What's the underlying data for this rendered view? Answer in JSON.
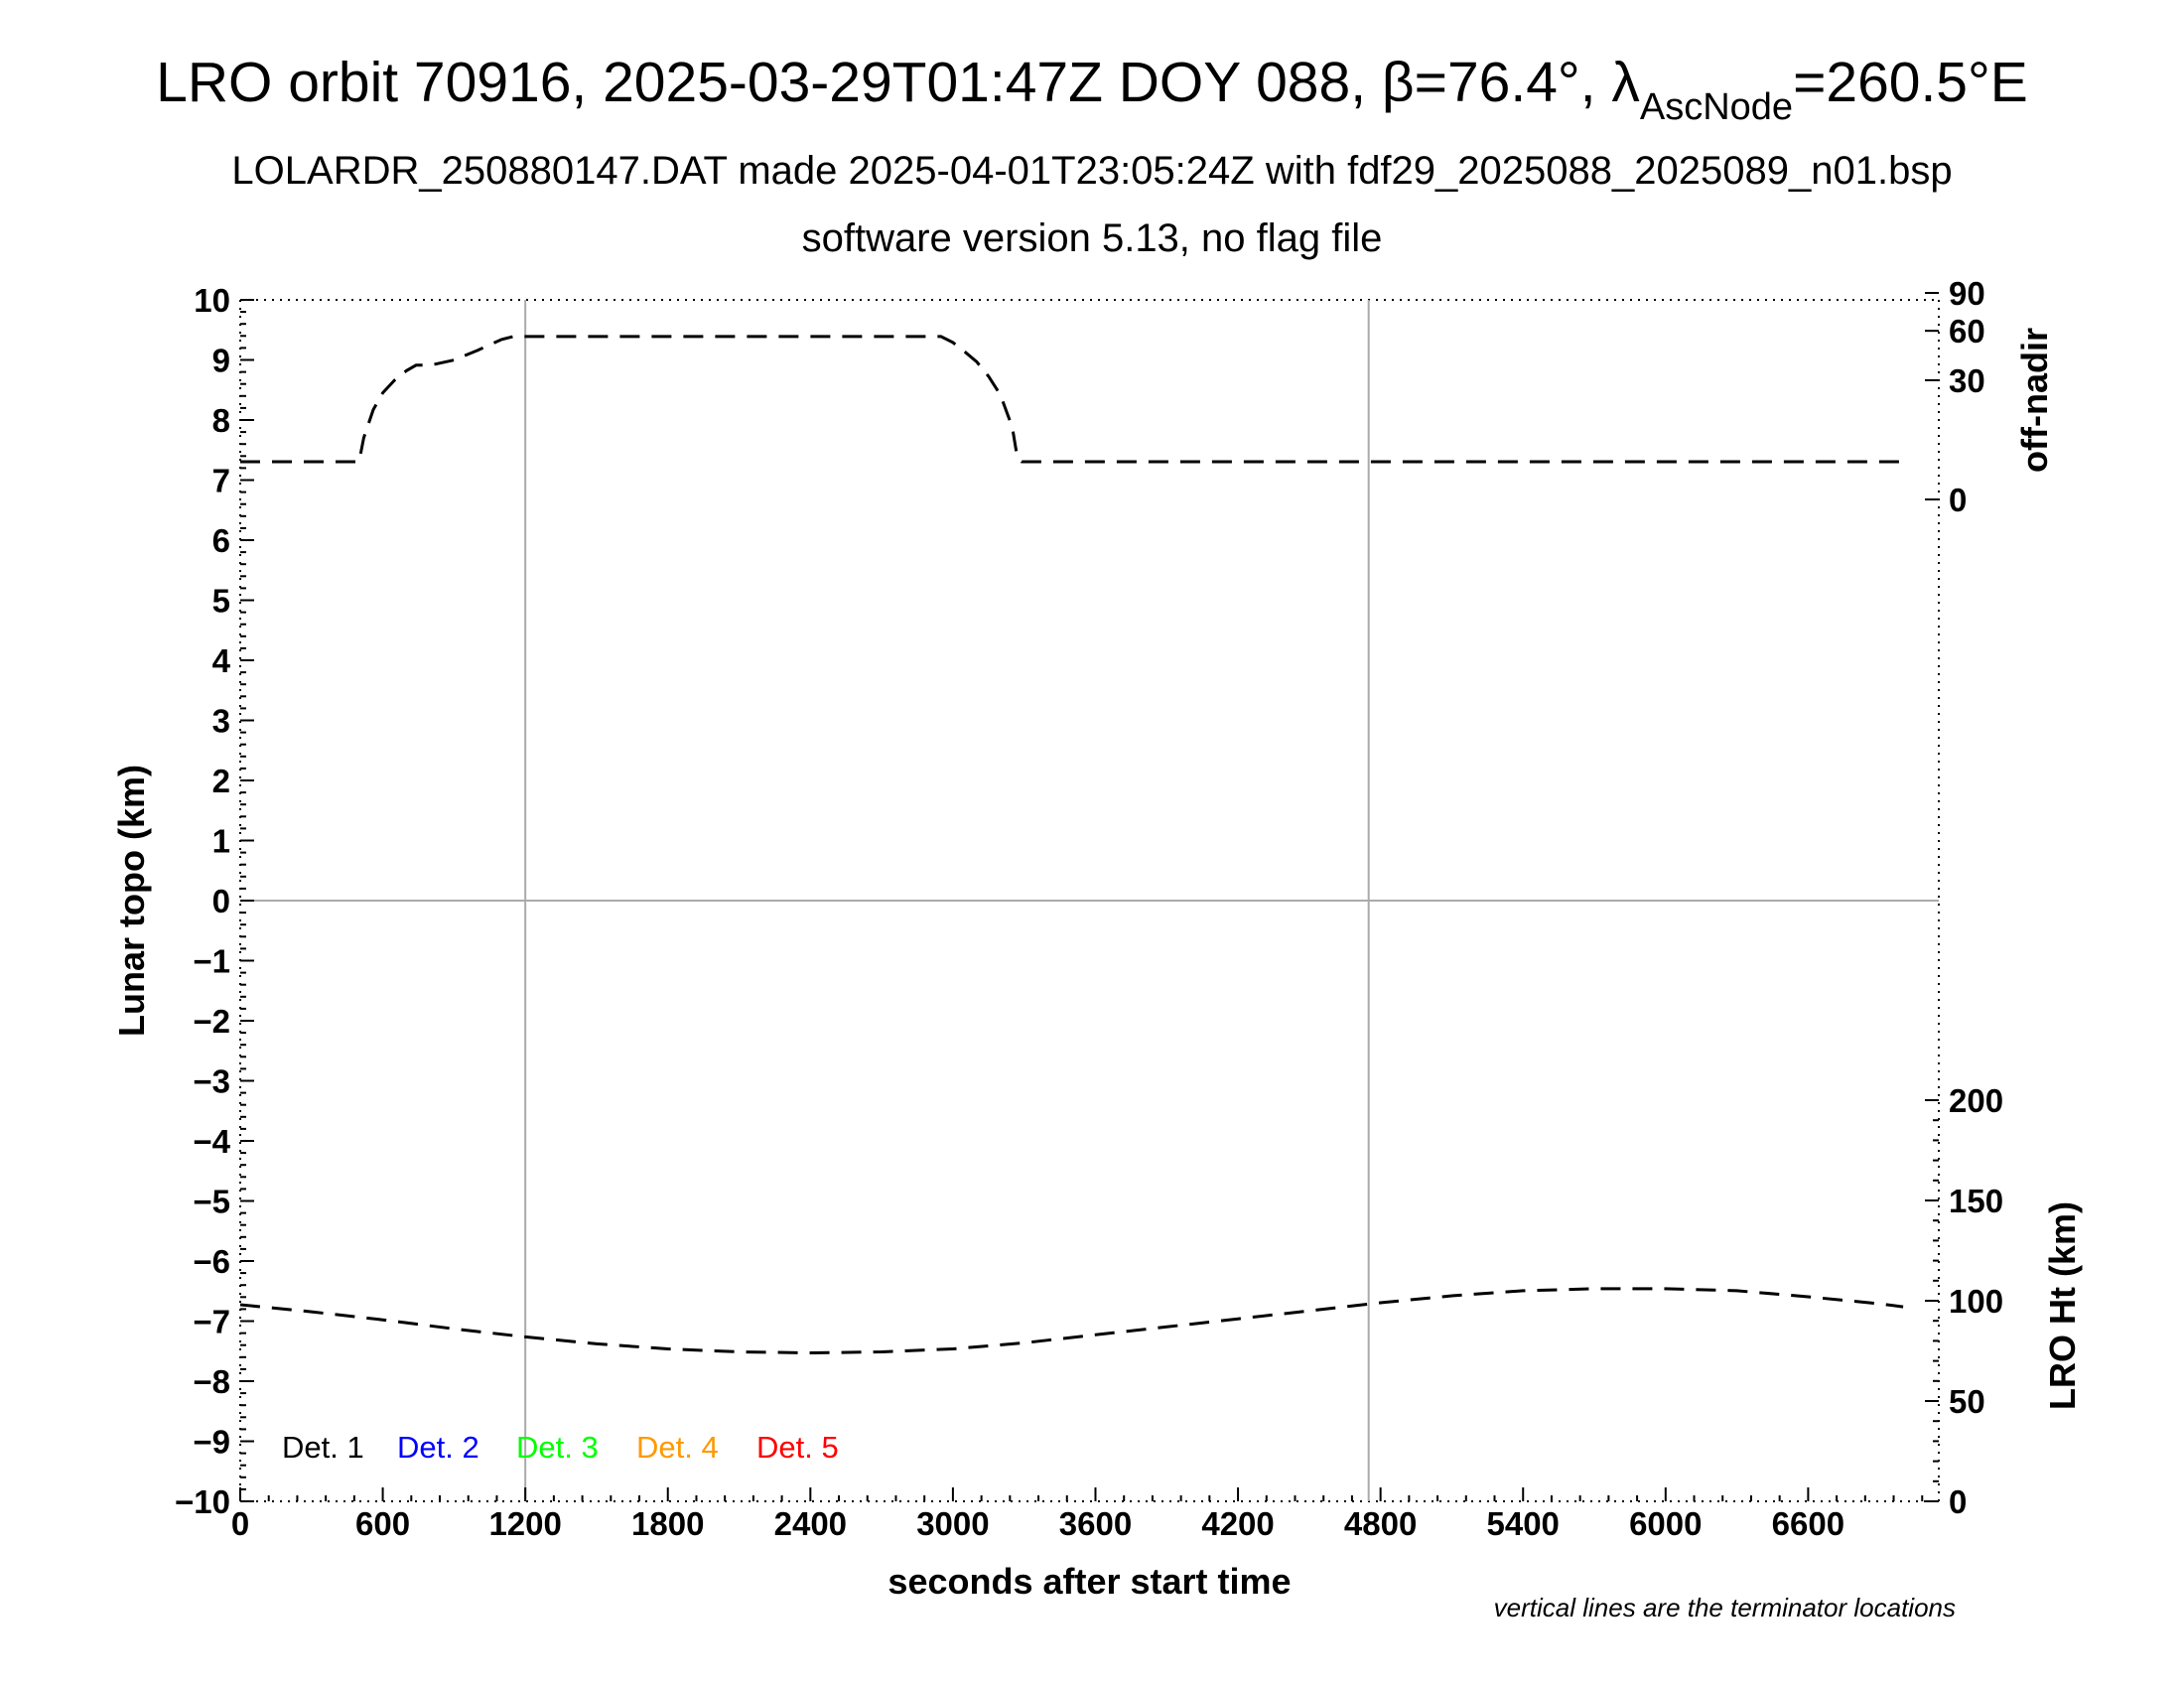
{
  "header": {
    "title_part1": "LRO orbit 70916, 2025-03-29T01:47Z DOY 088, ",
    "beta_symbol": "β",
    "beta_value": "=76.4°, ",
    "lambda_symbol": "λ",
    "lambda_sub": "AscNode",
    "lambda_value": "=260.5°E",
    "subtitle": "LOLARDR_250880147.DAT made 2025-04-01T23:05:24Z with fdf29_2025088_2025089_n01.bsp",
    "version": "software version 5.13, no flag file"
  },
  "footnote": "vertical lines are the terminator locations",
  "chart_data": {
    "type": "line",
    "xlabel": "seconds after start time",
    "ylabel_left": "Lunar topo (km)",
    "ylabel_right_top": "off-nadir",
    "ylabel_right_bottom": "LRO Ht (km)",
    "xlim": [
      0,
      7150
    ],
    "ylim_left": [
      -10,
      10
    ],
    "x_ticks": [
      0,
      600,
      1200,
      1800,
      2400,
      3000,
      3600,
      4200,
      4800,
      5400,
      6000,
      6600
    ],
    "x_tick_labels": [
      "0",
      "600",
      "1200",
      "1800",
      "2400",
      "3000",
      "3600",
      "4200",
      "4800",
      "5400",
      "6000",
      "6600"
    ],
    "y_ticks_left": [
      10,
      9,
      8,
      7,
      6,
      5,
      4,
      3,
      2,
      1,
      0,
      -1,
      -2,
      -3,
      -4,
      -5,
      -6,
      -7,
      -8,
      -9,
      -10
    ],
    "y_tick_labels_left": [
      "10",
      "9",
      "8",
      "7",
      "6",
      "5",
      "4",
      "3",
      "2",
      "1",
      "0",
      "−1",
      "−2",
      "−3",
      "−4",
      "−5",
      "−6",
      "−7",
      "−8",
      "−9",
      "−10"
    ],
    "offnadir_ticks": [
      0,
      30,
      60,
      90
    ],
    "offnadir_tick_labels": [
      "0",
      "30",
      "60",
      "90"
    ],
    "height_ticks": [
      0,
      50,
      100,
      150,
      200
    ],
    "height_tick_labels": [
      "0",
      "50",
      "100",
      "150",
      "200"
    ],
    "terminator_lines_x": [
      1200,
      4750
    ],
    "grid": "horizontal line at topo 0 and vertical terminator lines",
    "legend": [
      {
        "label": "Det. 1",
        "color": "#000000"
      },
      {
        "label": "Det. 2",
        "color": "#0000ff"
      },
      {
        "label": "Det. 3",
        "color": "#00ff00"
      },
      {
        "label": "Det. 4",
        "color": "#ff9900"
      },
      {
        "label": "Det. 5",
        "color": "#ff0000"
      }
    ],
    "legend_placement": "bottom-left",
    "series": [
      {
        "axis": "off-nadir",
        "style": "dashed",
        "color": "#000000",
        "x": [
          0,
          500,
          520,
          560,
          600,
          650,
          700,
          740,
          800,
          900,
          1000,
          1100,
          1150,
          1200,
          1500,
          2000,
          2500,
          2950,
          3000,
          3050,
          3100,
          3150,
          3200,
          3250,
          3270,
          3290,
          3300,
          3500,
          4000,
          5000,
          6000,
          7000
        ],
        "values": [
          3,
          3,
          8,
          17,
          24,
          30,
          35,
          38,
          38,
          41,
          47,
          54,
          56,
          56,
          56,
          56,
          56,
          56,
          52,
          46,
          40,
          32,
          23,
          11,
          4,
          3,
          3,
          3,
          3,
          3,
          3,
          3
        ]
      },
      {
        "axis": "LRO Ht (km)",
        "style": "dashed",
        "color": "#000000",
        "x": [
          0,
          300,
          600,
          900,
          1200,
          1500,
          1800,
          2100,
          2400,
          2700,
          3000,
          3300,
          3600,
          3900,
          4200,
          4500,
          4800,
          5100,
          5400,
          5700,
          6000,
          6300,
          6600,
          6900,
          7000
        ],
        "values": [
          98,
          94.5,
          90.5,
          86,
          82,
          78.5,
          76,
          74.5,
          74,
          74.5,
          76,
          79,
          83,
          87,
          91,
          95,
          99,
          102.5,
          105,
          106,
          106,
          105,
          102,
          98.5,
          97
        ]
      }
    ]
  }
}
